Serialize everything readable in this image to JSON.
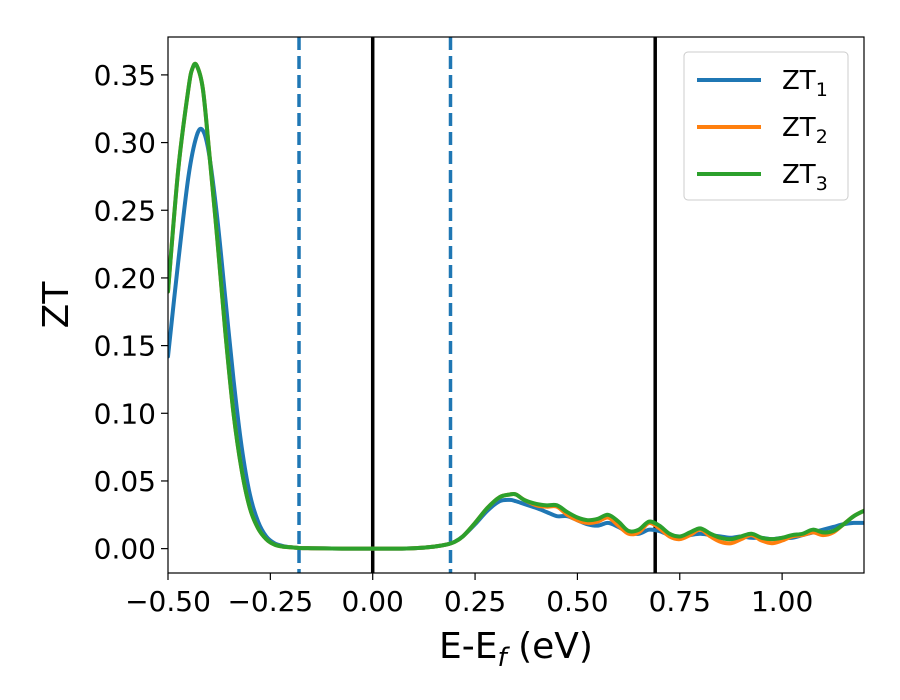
{
  "chart_data": {
    "type": "line",
    "title": "",
    "xlabel": {
      "main": "E-E",
      "sub": "f",
      "unit": " (eV)"
    },
    "ylabel": "ZT",
    "xlim": [
      -0.5,
      1.2
    ],
    "ylim": [
      -0.018,
      0.378
    ],
    "xticks": [
      -0.5,
      -0.25,
      0.0,
      0.25,
      0.5,
      0.75,
      1.0
    ],
    "xtick_labels": [
      "−0.50",
      "−0.25",
      "0.00",
      "0.25",
      "0.50",
      "0.75",
      "1.00"
    ],
    "yticks": [
      0.0,
      0.05,
      0.1,
      0.15,
      0.2,
      0.25,
      0.3,
      0.35
    ],
    "ytick_labels": [
      "0.00",
      "0.05",
      "0.10",
      "0.15",
      "0.20",
      "0.25",
      "0.30",
      "0.35"
    ],
    "grid": false,
    "legend_position": "top-right",
    "vertical_lines": [
      {
        "x": -0.18,
        "style": "dashed",
        "color": "#1f77b4"
      },
      {
        "x": 0.0,
        "style": "solid",
        "color": "#000000"
      },
      {
        "x": 0.19,
        "style": "dashed",
        "color": "#1f77b4"
      },
      {
        "x": 0.69,
        "style": "solid",
        "color": "#000000"
      }
    ],
    "series": [
      {
        "name": {
          "main": "ZT",
          "sub": "1"
        },
        "color": "#1f77b4",
        "x": [
          -0.5,
          -0.475,
          -0.45,
          -0.43,
          -0.415,
          -0.4,
          -0.38,
          -0.36,
          -0.34,
          -0.32,
          -0.3,
          -0.28,
          -0.26,
          -0.24,
          -0.22,
          -0.2,
          -0.18,
          -0.15,
          -0.1,
          -0.05,
          0.0,
          0.05,
          0.1,
          0.15,
          0.18,
          0.2,
          0.22,
          0.25,
          0.28,
          0.31,
          0.335,
          0.35,
          0.37,
          0.4,
          0.425,
          0.45,
          0.475,
          0.5,
          0.525,
          0.55,
          0.575,
          0.6,
          0.625,
          0.65,
          0.675,
          0.7,
          0.725,
          0.75,
          0.775,
          0.8,
          0.825,
          0.85,
          0.875,
          0.9,
          0.925,
          0.95,
          0.975,
          1.0,
          1.025,
          1.05,
          1.075,
          1.1,
          1.125,
          1.15,
          1.175,
          1.2
        ],
        "y": [
          0.142,
          0.212,
          0.275,
          0.305,
          0.309,
          0.292,
          0.245,
          0.185,
          0.125,
          0.075,
          0.04,
          0.02,
          0.009,
          0.004,
          0.002,
          0.001,
          0.0005,
          0.0003,
          0.0001,
          0.0,
          0.0,
          0.0,
          0.0003,
          0.0015,
          0.003,
          0.005,
          0.009,
          0.018,
          0.028,
          0.035,
          0.036,
          0.035,
          0.033,
          0.03,
          0.027,
          0.024,
          0.024,
          0.021,
          0.018,
          0.017,
          0.019,
          0.016,
          0.012,
          0.011,
          0.014,
          0.013,
          0.01,
          0.009,
          0.01,
          0.011,
          0.01,
          0.009,
          0.008,
          0.009,
          0.008,
          0.008,
          0.007,
          0.008,
          0.008,
          0.01,
          0.012,
          0.014,
          0.016,
          0.018,
          0.019,
          0.019
        ]
      },
      {
        "name": {
          "main": "ZT",
          "sub": "2"
        },
        "color": "#ff7f0e",
        "x": [
          -0.5,
          -0.475,
          -0.45,
          -0.44,
          -0.43,
          -0.415,
          -0.4,
          -0.38,
          -0.36,
          -0.34,
          -0.32,
          -0.3,
          -0.28,
          -0.26,
          -0.24,
          -0.22,
          -0.2,
          -0.18,
          -0.15,
          -0.1,
          -0.05,
          0.0,
          0.05,
          0.1,
          0.15,
          0.18,
          0.2,
          0.22,
          0.25,
          0.28,
          0.31,
          0.335,
          0.35,
          0.37,
          0.4,
          0.425,
          0.45,
          0.475,
          0.5,
          0.525,
          0.55,
          0.575,
          0.6,
          0.625,
          0.65,
          0.675,
          0.7,
          0.725,
          0.75,
          0.775,
          0.8,
          0.825,
          0.85,
          0.875,
          0.9,
          0.925,
          0.95,
          0.975,
          1.0,
          1.025,
          1.05,
          1.075,
          1.1,
          1.125,
          1.15,
          1.175,
          1.2
        ],
        "y": [
          0.19,
          0.28,
          0.34,
          0.355,
          0.357,
          0.34,
          0.295,
          0.23,
          0.16,
          0.1,
          0.058,
          0.03,
          0.015,
          0.007,
          0.003,
          0.0015,
          0.001,
          0.0005,
          0.0003,
          0.0001,
          0.0,
          0.0,
          0.0,
          0.0003,
          0.0015,
          0.003,
          0.005,
          0.009,
          0.019,
          0.03,
          0.038,
          0.04,
          0.04,
          0.036,
          0.032,
          0.031,
          0.031,
          0.025,
          0.021,
          0.019,
          0.02,
          0.023,
          0.017,
          0.011,
          0.012,
          0.019,
          0.015,
          0.009,
          0.007,
          0.01,
          0.014,
          0.009,
          0.005,
          0.004,
          0.007,
          0.01,
          0.006,
          0.004,
          0.006,
          0.009,
          0.01,
          0.012,
          0.01,
          0.012,
          0.018,
          0.024,
          0.028
        ]
      },
      {
        "name": {
          "main": "ZT",
          "sub": "3"
        },
        "color": "#2ca02c",
        "x": [
          -0.5,
          -0.475,
          -0.45,
          -0.44,
          -0.43,
          -0.415,
          -0.4,
          -0.38,
          -0.36,
          -0.34,
          -0.32,
          -0.3,
          -0.28,
          -0.26,
          -0.24,
          -0.22,
          -0.2,
          -0.18,
          -0.15,
          -0.1,
          -0.05,
          0.0,
          0.05,
          0.1,
          0.15,
          0.18,
          0.2,
          0.22,
          0.25,
          0.28,
          0.31,
          0.335,
          0.35,
          0.37,
          0.4,
          0.425,
          0.45,
          0.475,
          0.5,
          0.525,
          0.55,
          0.575,
          0.6,
          0.625,
          0.65,
          0.675,
          0.7,
          0.725,
          0.75,
          0.775,
          0.8,
          0.825,
          0.85,
          0.875,
          0.9,
          0.925,
          0.95,
          0.975,
          1.0,
          1.025,
          1.05,
          1.075,
          1.1,
          1.125,
          1.15,
          1.175,
          1.2
        ],
        "y": [
          0.19,
          0.28,
          0.34,
          0.355,
          0.357,
          0.34,
          0.295,
          0.23,
          0.16,
          0.1,
          0.058,
          0.03,
          0.015,
          0.007,
          0.003,
          0.0015,
          0.001,
          0.0005,
          0.0003,
          0.0001,
          0.0,
          0.0,
          0.0,
          0.0003,
          0.0015,
          0.003,
          0.005,
          0.009,
          0.019,
          0.03,
          0.038,
          0.04,
          0.04,
          0.036,
          0.033,
          0.032,
          0.032,
          0.027,
          0.023,
          0.021,
          0.022,
          0.025,
          0.02,
          0.013,
          0.014,
          0.02,
          0.017,
          0.011,
          0.009,
          0.012,
          0.015,
          0.011,
          0.008,
          0.007,
          0.009,
          0.011,
          0.008,
          0.007,
          0.008,
          0.01,
          0.011,
          0.014,
          0.012,
          0.013,
          0.018,
          0.024,
          0.028
        ]
      }
    ]
  }
}
